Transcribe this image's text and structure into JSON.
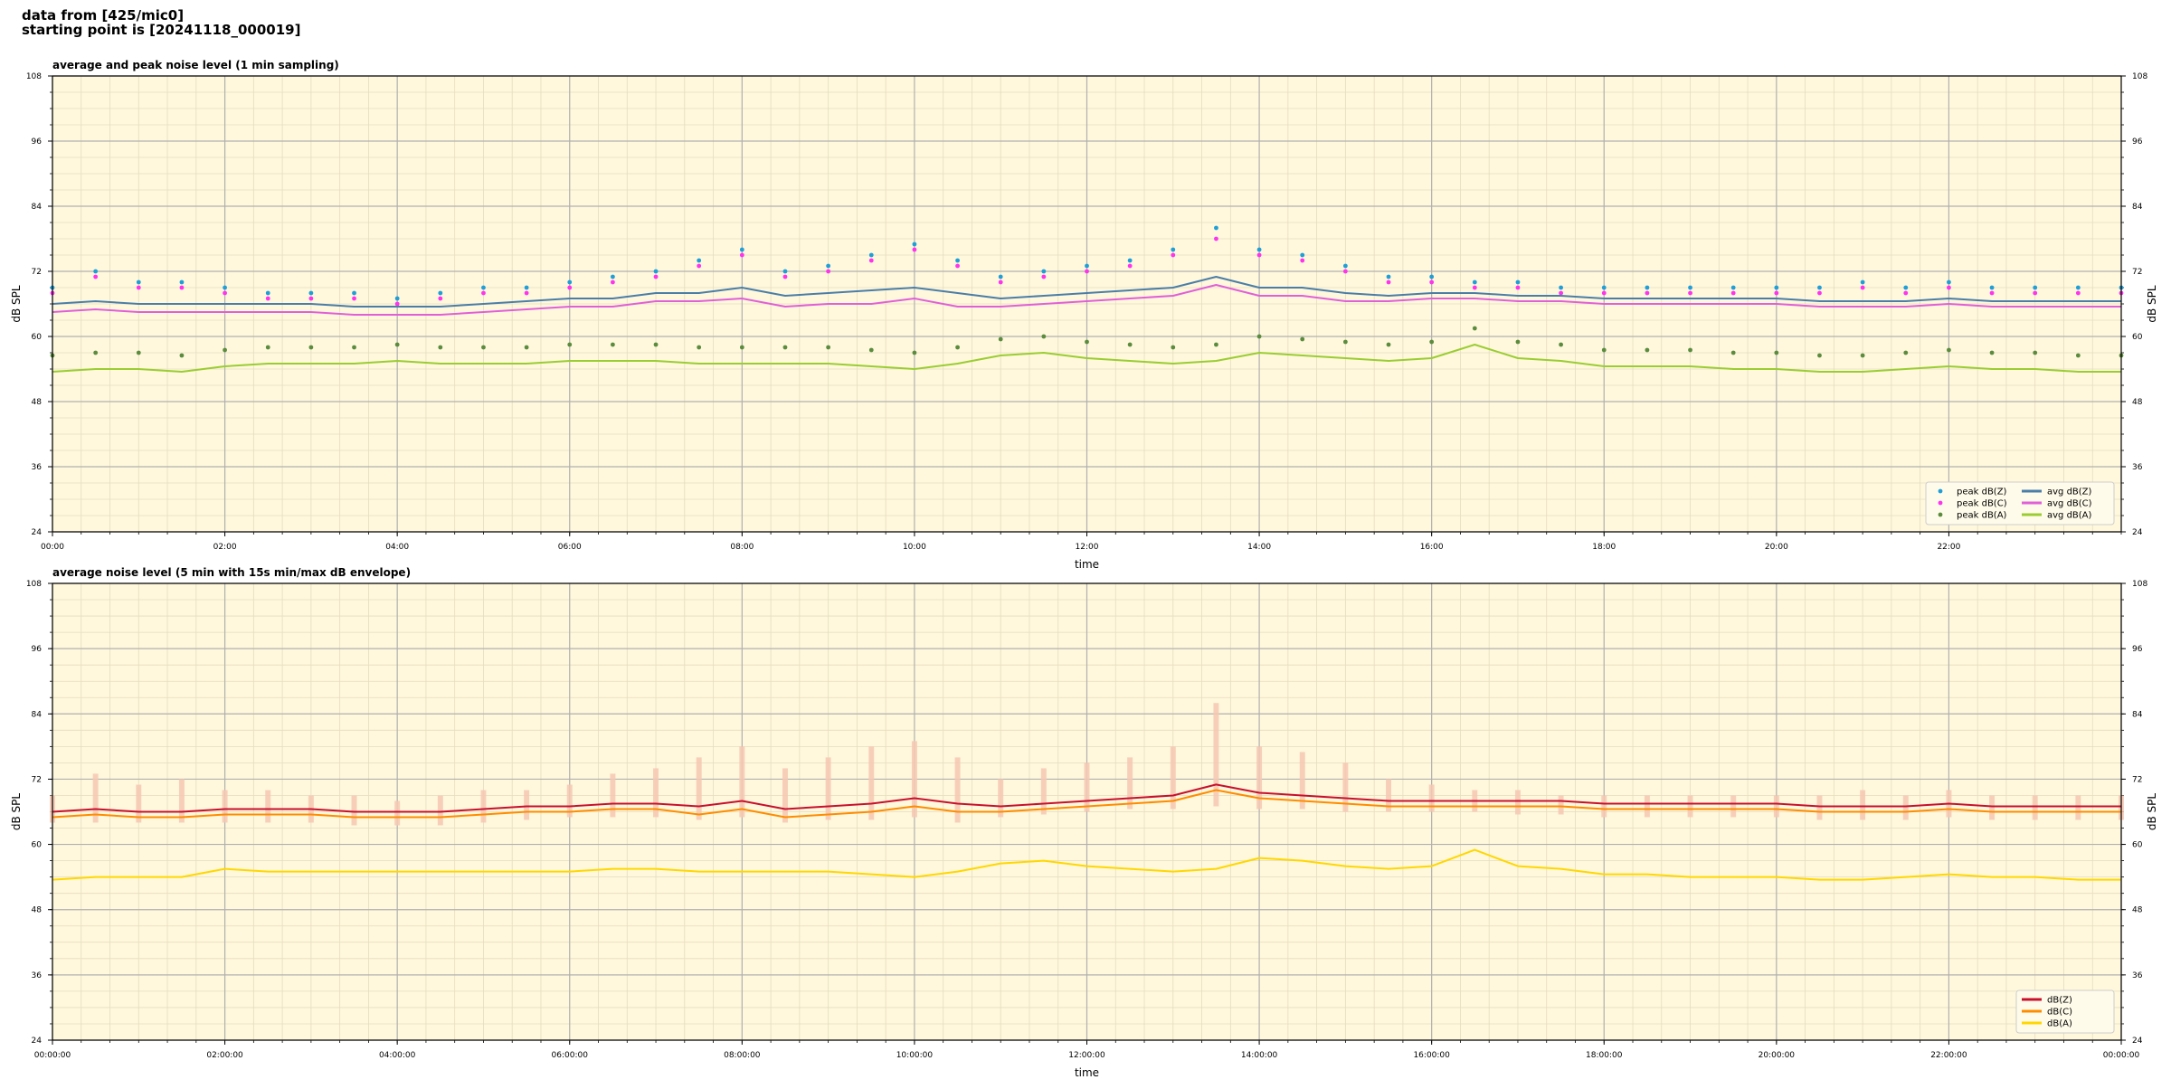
{
  "title_lines": [
    "data from [425/mic0]",
    "starting point is [20241118_000019]"
  ],
  "chart_data": [
    {
      "type": "line",
      "title": "average and peak noise level (1 min sampling)",
      "xlabel": "time",
      "ylabel": "dB SPL",
      "background": "#fff8dc",
      "grid": true,
      "minor_grid": true,
      "legend": "lower right",
      "legend_columns": 2,
      "xlim": [
        0,
        24
      ],
      "ylim": [
        24,
        108
      ],
      "xticks": [
        {
          "value": 0,
          "label": "00:00"
        },
        {
          "value": 2,
          "label": "02:00"
        },
        {
          "value": 4,
          "label": "04:00"
        },
        {
          "value": 6,
          "label": "06:00"
        },
        {
          "value": 8,
          "label": "08:00"
        },
        {
          "value": 10,
          "label": "10:00"
        },
        {
          "value": 12,
          "label": "12:00"
        },
        {
          "value": 14,
          "label": "14:00"
        },
        {
          "value": 16,
          "label": "16:00"
        },
        {
          "value": 18,
          "label": "18:00"
        },
        {
          "value": 20,
          "label": "20:00"
        },
        {
          "value": 22,
          "label": "22:00"
        }
      ],
      "yticks": [
        24,
        36,
        48,
        60,
        72,
        84,
        96,
        108
      ],
      "x": [
        0,
        0.5,
        1,
        1.5,
        2,
        2.5,
        3,
        3.5,
        4,
        4.5,
        5,
        5.5,
        6,
        6.5,
        7,
        7.5,
        8,
        8.5,
        9,
        9.5,
        10,
        10.5,
        11,
        11.5,
        12,
        12.5,
        13,
        13.5,
        14,
        14.5,
        15,
        15.5,
        16,
        16.5,
        17,
        17.5,
        18,
        18.5,
        19,
        19.5,
        20,
        20.5,
        21,
        21.5,
        22,
        22.5,
        23,
        23.5,
        24
      ],
      "series": [
        {
          "name": "peak dB(Z)",
          "type": "scatter",
          "color": "#1f9fd8",
          "values": [
            69,
            72,
            70,
            70,
            69,
            68,
            68,
            68,
            67,
            68,
            69,
            69,
            70,
            71,
            72,
            74,
            76,
            72,
            73,
            75,
            77,
            74,
            71,
            72,
            73,
            74,
            76,
            80,
            76,
            75,
            73,
            71,
            71,
            70,
            70,
            69,
            69,
            69,
            69,
            69,
            69,
            69,
            70,
            69,
            70,
            69,
            69,
            69,
            69
          ]
        },
        {
          "name": "peak dB(C)",
          "type": "scatter",
          "color": "#ff33ee",
          "values": [
            68,
            71,
            69,
            69,
            68,
            67,
            67,
            67,
            66,
            67,
            68,
            68,
            69,
            70,
            71,
            73,
            75,
            71,
            72,
            74,
            76,
            73,
            70,
            71,
            72,
            73,
            75,
            78,
            75,
            74,
            72,
            70,
            70,
            69,
            69,
            68,
            68,
            68,
            68,
            68,
            68,
            68,
            69,
            68,
            69,
            68,
            68,
            68,
            68
          ]
        },
        {
          "name": "peak dB(A)",
          "type": "scatter",
          "color": "#5b8c3e",
          "values": [
            56.5,
            57,
            57,
            56.5,
            57.5,
            58,
            58,
            58,
            58.5,
            58,
            58,
            58,
            58.5,
            58.5,
            58.5,
            58,
            58,
            58,
            58,
            57.5,
            57,
            58,
            59.5,
            60,
            59,
            58.5,
            58,
            58.5,
            60,
            59.5,
            59,
            58.5,
            59,
            61.5,
            59,
            58.5,
            57.5,
            57.5,
            57.5,
            57,
            57,
            56.5,
            56.5,
            57,
            57.5,
            57,
            57,
            56.5,
            56.5
          ]
        },
        {
          "name": "avg dB(Z)",
          "type": "line",
          "color": "#4a7ea8",
          "values": [
            66,
            66.5,
            66,
            66,
            66,
            66,
            66,
            65.5,
            65.5,
            65.5,
            66,
            66.5,
            67,
            67,
            68,
            68,
            69,
            67.5,
            68,
            68.5,
            69,
            68,
            67,
            67.5,
            68,
            68.5,
            69,
            71,
            69,
            69,
            68,
            67.5,
            68,
            68,
            67.5,
            67.5,
            67,
            67,
            67,
            67,
            67,
            66.5,
            66.5,
            66.5,
            67,
            66.5,
            66.5,
            66.5,
            66.5
          ]
        },
        {
          "name": "avg dB(C)",
          "type": "line",
          "color": "#e060d8",
          "values": [
            64.5,
            65,
            64.5,
            64.5,
            64.5,
            64.5,
            64.5,
            64,
            64,
            64,
            64.5,
            65,
            65.5,
            65.5,
            66.5,
            66.5,
            67,
            65.5,
            66,
            66,
            67,
            65.5,
            65.5,
            66,
            66.5,
            67,
            67.5,
            69.5,
            67.5,
            67.5,
            66.5,
            66.5,
            67,
            67,
            66.5,
            66.5,
            66,
            66,
            66,
            66,
            66,
            65.5,
            65.5,
            65.5,
            66,
            65.5,
            65.5,
            65.5,
            65.5
          ]
        },
        {
          "name": "avg dB(A)",
          "type": "line",
          "color": "#9acd32",
          "values": [
            53.5,
            54,
            54,
            53.5,
            54.5,
            55,
            55,
            55,
            55.5,
            55,
            55,
            55,
            55.5,
            55.5,
            55.5,
            55,
            55,
            55,
            55,
            54.5,
            54,
            55,
            56.5,
            57,
            56,
            55.5,
            55,
            55.5,
            57,
            56.5,
            56,
            55.5,
            56,
            58.5,
            56,
            55.5,
            54.5,
            54.5,
            54.5,
            54,
            54,
            53.5,
            53.5,
            54,
            54.5,
            54,
            54,
            53.5,
            53.5
          ]
        }
      ]
    },
    {
      "type": "line",
      "title": "average noise level (5 min with 15s min/max dB envelope)",
      "xlabel": "time",
      "ylabel": "dB SPL",
      "background": "#fff8dc",
      "grid": true,
      "minor_grid": true,
      "legend": "lower right",
      "legend_columns": 1,
      "xlim": [
        0,
        24
      ],
      "ylim": [
        24,
        108
      ],
      "xticks": [
        {
          "value": 0,
          "label": "00:00:00"
        },
        {
          "value": 2,
          "label": "02:00:00"
        },
        {
          "value": 4,
          "label": "04:00:00"
        },
        {
          "value": 6,
          "label": "06:00:00"
        },
        {
          "value": 8,
          "label": "08:00:00"
        },
        {
          "value": 10,
          "label": "10:00:00"
        },
        {
          "value": 12,
          "label": "12:00:00"
        },
        {
          "value": 14,
          "label": "14:00:00"
        },
        {
          "value": 16,
          "label": "16:00:00"
        },
        {
          "value": 18,
          "label": "18:00:00"
        },
        {
          "value": 20,
          "label": "20:00:00"
        },
        {
          "value": 22,
          "label": "22:00:00"
        },
        {
          "value": 24,
          "label": "00:00:00"
        }
      ],
      "yticks": [
        24,
        36,
        48,
        60,
        72,
        84,
        96,
        108
      ],
      "x": [
        0,
        0.5,
        1,
        1.5,
        2,
        2.5,
        3,
        3.5,
        4,
        4.5,
        5,
        5.5,
        6,
        6.5,
        7,
        7.5,
        8,
        8.5,
        9,
        9.5,
        10,
        10.5,
        11,
        11.5,
        12,
        12.5,
        13,
        13.5,
        14,
        14.5,
        15,
        15.5,
        16,
        16.5,
        17,
        17.5,
        18,
        18.5,
        19,
        19.5,
        20,
        20.5,
        21,
        21.5,
        22,
        22.5,
        23,
        23.5,
        24
      ],
      "series": [
        {
          "type": "envelope",
          "color": "#f6c9b4",
          "low": [
            64,
            64,
            64,
            64,
            64,
            64,
            64,
            63.5,
            63.5,
            63.5,
            64,
            64.5,
            65,
            65,
            65,
            64.5,
            65,
            64,
            64.5,
            64.5,
            65,
            64,
            65,
            65.5,
            66,
            66.5,
            66.5,
            67,
            66.5,
            66.5,
            66,
            66,
            66,
            66,
            65.5,
            65.5,
            65,
            65,
            65,
            65,
            65,
            64.5,
            64.5,
            64.5,
            65,
            64.5,
            64.5,
            64.5,
            64.5
          ],
          "values": [
            69,
            73,
            71,
            72,
            70,
            70,
            69,
            69,
            68,
            69,
            70,
            70,
            71,
            73,
            74,
            76,
            78,
            74,
            76,
            78,
            79,
            76,
            72,
            74,
            75,
            76,
            78,
            86,
            78,
            77,
            75,
            72,
            71,
            70,
            70,
            69,
            69,
            69,
            69,
            69,
            69,
            69,
            70,
            69,
            70,
            69,
            69,
            69,
            69
          ]
        },
        {
          "name": "dB(Z)",
          "type": "line",
          "color": "#c8102e",
          "values": [
            66,
            66.5,
            66,
            66,
            66.5,
            66.5,
            66.5,
            66,
            66,
            66,
            66.5,
            67,
            67,
            67.5,
            67.5,
            67,
            68,
            66.5,
            67,
            67.5,
            68.5,
            67.5,
            67,
            67.5,
            68,
            68.5,
            69,
            71,
            69.5,
            69,
            68.5,
            68,
            68,
            68,
            68,
            68,
            67.5,
            67.5,
            67.5,
            67.5,
            67.5,
            67,
            67,
            67,
            67.5,
            67,
            67,
            67,
            67
          ]
        },
        {
          "name": "dB(C)",
          "type": "line",
          "color": "#ff8c00",
          "values": [
            65,
            65.5,
            65,
            65,
            65.5,
            65.5,
            65.5,
            65,
            65,
            65,
            65.5,
            66,
            66,
            66.5,
            66.5,
            65.5,
            66.5,
            65,
            65.5,
            66,
            67,
            66,
            66,
            66.5,
            67,
            67.5,
            68,
            70,
            68.5,
            68,
            67.5,
            67,
            67,
            67,
            67,
            67,
            66.5,
            66.5,
            66.5,
            66.5,
            66.5,
            66,
            66,
            66,
            66.5,
            66,
            66,
            66,
            66
          ]
        },
        {
          "name": "dB(A)",
          "type": "line",
          "color": "#ffd700",
          "values": [
            53.5,
            54,
            54,
            54,
            55.5,
            55,
            55,
            55,
            55,
            55,
            55,
            55,
            55,
            55.5,
            55.5,
            55,
            55,
            55,
            55,
            54.5,
            54,
            55,
            56.5,
            57,
            56,
            55.5,
            55,
            55.5,
            57.5,
            57,
            56,
            55.5,
            56,
            59,
            56,
            55.5,
            54.5,
            54.5,
            54,
            54,
            54,
            53.5,
            53.5,
            54,
            54.5,
            54,
            54,
            53.5,
            53.5
          ]
        }
      ]
    }
  ]
}
